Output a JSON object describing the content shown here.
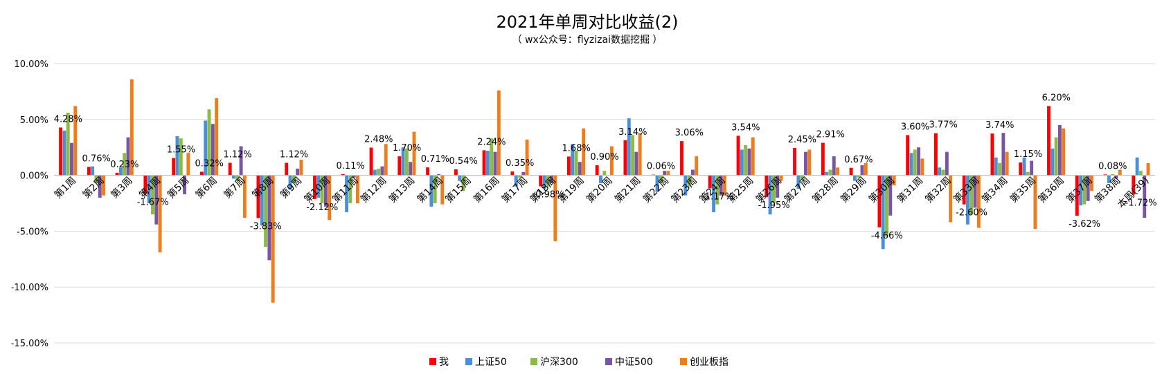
{
  "chart_data": {
    "type": "bar",
    "title": "2021年单周对比收益(2)",
    "subtitle": "（ wx公众号：flyzizai数据挖掘 ）",
    "ylim": [
      -15,
      10
    ],
    "yticks": [
      10,
      5,
      0,
      -5,
      -10,
      -15
    ],
    "ytick_labels": [
      "10.00%",
      "5.00%",
      "0.00%",
      "-5.00%",
      "-10.00%",
      "-15.00%"
    ],
    "grid": true,
    "legend_position": "bottom",
    "categories": [
      "第1周",
      "第2周",
      "第3周",
      "第4周",
      "第5周",
      "第6周",
      "第7周",
      "第8周",
      "第9周",
      "第10周",
      "第11周",
      "第12周",
      "第13周",
      "第14周",
      "第15周",
      "第16周",
      "第17周",
      "第18周",
      "第19周",
      "第20周",
      "第21周",
      "第22周",
      "第23周",
      "第24周",
      "第25周",
      "第26周",
      "第27周",
      "第28周",
      "第29周",
      "第30周",
      "第31周",
      "第32周",
      "第33周",
      "第34周",
      "第35周",
      "第36周",
      "第37周",
      "第38周",
      "本周(39)"
    ],
    "series": [
      {
        "name": "我",
        "color": "#ff0000",
        "values": [
          4.28,
          0.76,
          0.23,
          -1.67,
          1.55,
          0.32,
          1.12,
          -3.83,
          1.12,
          -2.12,
          0.11,
          2.48,
          1.7,
          0.71,
          0.54,
          2.24,
          0.35,
          -0.98,
          1.68,
          0.9,
          3.14,
          0.06,
          3.06,
          -1.17,
          3.54,
          -1.95,
          2.45,
          2.91,
          0.67,
          -4.66,
          3.6,
          3.77,
          -2.6,
          3.74,
          1.15,
          6.2,
          -3.62,
          0.08,
          -1.72
        ]
      },
      {
        "name": "上证50",
        "color": "#4a90d9",
        "values": [
          4.0,
          0.8,
          0.7,
          -2.5,
          3.5,
          4.9,
          -0.3,
          -4.5,
          -1.3,
          -2.0,
          -3.3,
          0.5,
          2.5,
          -2.8,
          -0.5,
          2.2,
          -1.0,
          -1.2,
          2.8,
          -0.7,
          5.1,
          -1.5,
          -1.8,
          -3.3,
          2.3,
          -3.5,
          -1.2,
          0.3,
          -0.5,
          -6.6,
          2.0,
          0.7,
          -4.4,
          1.6,
          1.6,
          2.4,
          -2.7,
          -0.7,
          1.6
        ]
      },
      {
        "name": "沪深300",
        "color": "#8cba47",
        "values": [
          5.6,
          -0.7,
          2.0,
          -3.5,
          3.3,
          5.9,
          -0.5,
          -6.4,
          -0.7,
          -2.5,
          -2.5,
          0.6,
          2.4,
          -2.5,
          -1.4,
          3.3,
          -0.2,
          -1.0,
          2.2,
          0.4,
          3.6,
          -0.7,
          -1.0,
          -2.6,
          2.7,
          -2.5,
          -0.4,
          0.5,
          -0.2,
          -5.5,
          2.3,
          0.5,
          -3.5,
          1.1,
          0.3,
          3.4,
          -2.6,
          0.1,
          0.4
        ]
      },
      {
        "name": "中证500",
        "color": "#7955a3",
        "values": [
          2.9,
          -2.0,
          3.4,
          -4.4,
          -1.7,
          4.6,
          2.6,
          -7.6,
          0.6,
          -2.8,
          -0.2,
          0.8,
          1.2,
          0.1,
          0.0,
          2.1,
          0.3,
          -0.7,
          1.2,
          0.0,
          2.1,
          0.4,
          0.5,
          -1.8,
          2.4,
          -2.0,
          2.1,
          1.7,
          0.9,
          -3.6,
          2.5,
          2.1,
          -2.9,
          3.8,
          1.3,
          4.5,
          -2.3,
          -0.3,
          -3.8
        ]
      },
      {
        "name": "创业板指",
        "color": "#f07d1a",
        "values": [
          6.2,
          -1.8,
          8.6,
          -6.9,
          2.0,
          6.9,
          -3.8,
          -11.4,
          1.4,
          -4.0,
          -2.5,
          2.8,
          3.9,
          -2.6,
          0.0,
          7.6,
          3.2,
          -5.9,
          4.2,
          2.6,
          3.8,
          0.4,
          1.7,
          -1.8,
          3.4,
          -0.5,
          2.3,
          0.7,
          1.1,
          -0.9,
          1.5,
          -4.2,
          -4.7,
          2.1,
          -4.8,
          4.2,
          -1.4,
          0.5,
          1.1
        ]
      }
    ],
    "data_labels": {
      "series": "我",
      "texts": [
        "4.28%",
        "0.76%",
        "0.23%",
        "-1.67%",
        "1.55%",
        "0.32%",
        "1.12%",
        "-3.83%",
        "1.12%",
        "-2.12%",
        "0.11%",
        "2.48%",
        "1.70%",
        "0.71%",
        "0.54%",
        "2.24%",
        "0.35%",
        "-0.98%",
        "1.68%",
        "0.90%",
        "3.14%",
        "0.06%",
        "3.06%",
        "-1.17%",
        "3.54%",
        "-1.95%",
        "2.45%",
        "2.91%",
        "0.67%",
        "-4.66%",
        "3.60%",
        "3.77%",
        "-2.60%",
        "3.74%",
        "1.15%",
        "6.20%",
        "-3.62%",
        "0.08%",
        "-1.72%"
      ]
    }
  }
}
